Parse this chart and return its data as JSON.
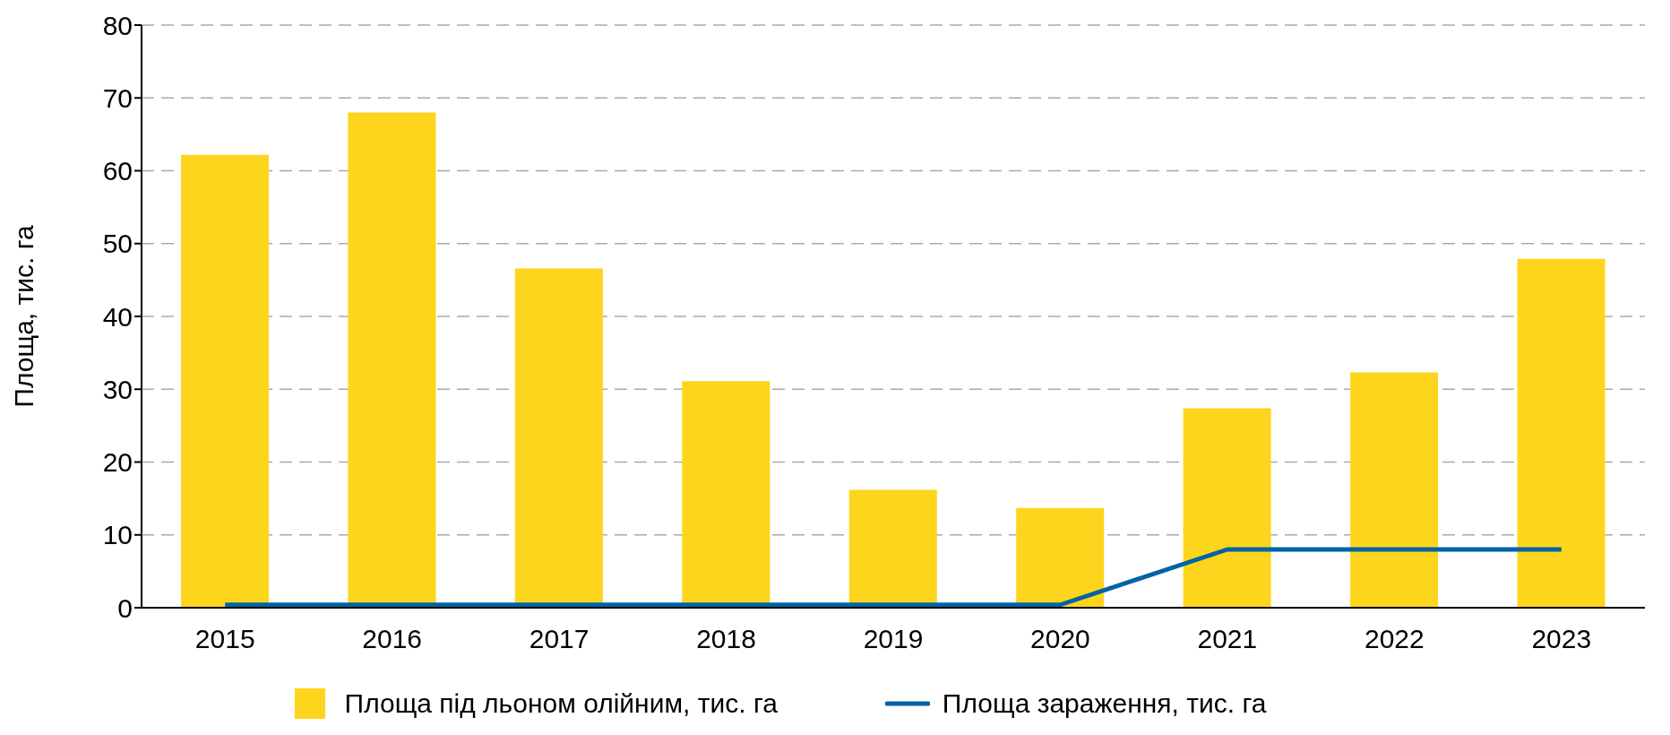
{
  "chart_data": {
    "type": "bar",
    "ylabel": "Площа, тис. га",
    "categories": [
      "2015",
      "2016",
      "2017",
      "2018",
      "2019",
      "2020",
      "2021",
      "2022",
      "2023"
    ],
    "series": [
      {
        "name": "Площа під льоном олійним, тис. га",
        "color": "#fdd51c",
        "values": [
          62.2,
          68.0,
          46.6,
          31.1,
          16.2,
          13.7,
          27.4,
          32.3,
          47.9
        ]
      },
      {
        "name": "Площа зараження, тис. га",
        "type": "line",
        "color": "#0063a6",
        "values": [
          0.4,
          0.4,
          0.4,
          0.4,
          0.4,
          0.4,
          8.0,
          8.0,
          8.0
        ]
      }
    ],
    "ylim": [
      0,
      80
    ],
    "yticks": [
      0,
      10,
      20,
      30,
      40,
      50,
      60,
      70,
      80
    ],
    "grid": "y",
    "legend": "bottom",
    "marker": "none",
    "line_style": "solid"
  }
}
